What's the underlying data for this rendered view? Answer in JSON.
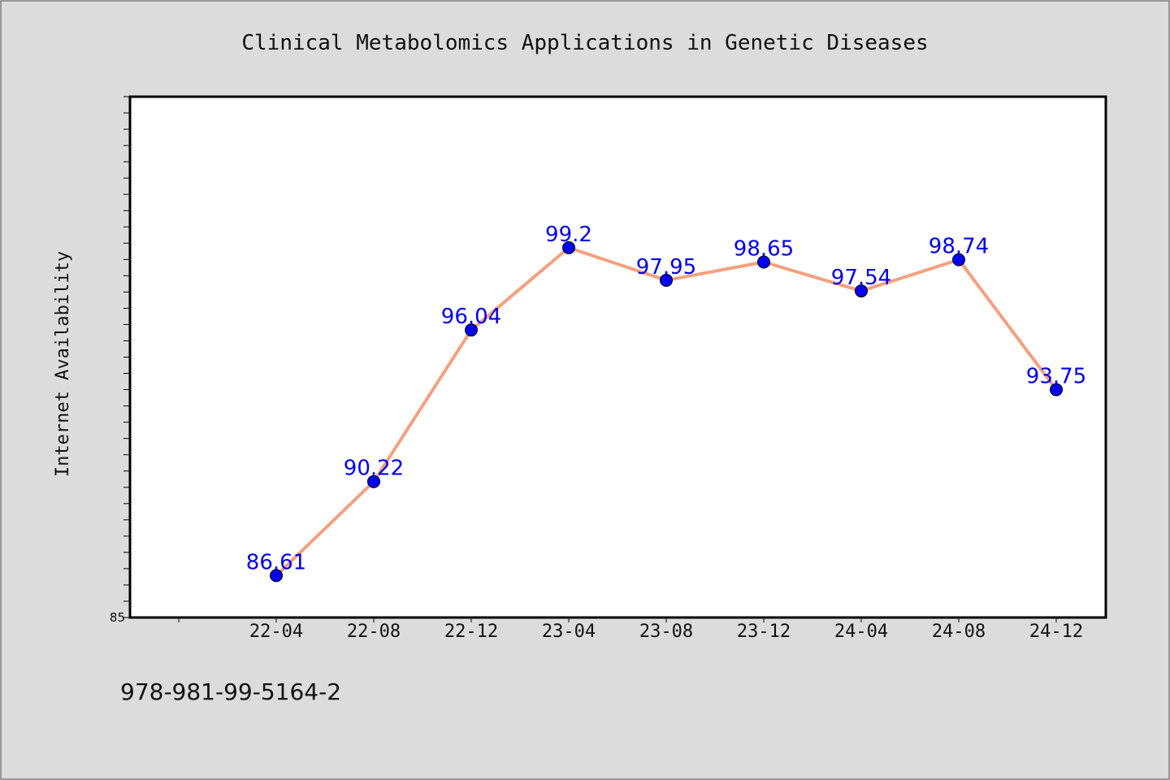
{
  "colors": {
    "background": "#dcdcdc",
    "plot_background": "#ffffff",
    "line": "#f4a07f",
    "marker": "#0000ee",
    "data_label": "#0000ee"
  },
  "chart_data": {
    "type": "line",
    "title": "Clinical Metabolomics Applications in Genetic Diseases",
    "ylabel": "Internet Availability",
    "xlabel": "",
    "categories": [
      "22-04",
      "22-08",
      "22-12",
      "23-04",
      "23-08",
      "23-12",
      "24-04",
      "24-08",
      "24-12"
    ],
    "values": [
      86.61,
      90.22,
      96.04,
      99.2,
      97.95,
      98.65,
      97.54,
      98.74,
      93.75
    ],
    "data_labels": [
      "86.61",
      "90.22",
      "96.04",
      "99.2",
      "97.95",
      "98.65",
      "97.54",
      "98.74",
      "93.75"
    ],
    "ylim": [
      85,
      105
    ],
    "y_tick_labels": [
      "85"
    ],
    "grid": false,
    "legend": "none"
  },
  "footer": {
    "isbn": "978-981-99-5164-2"
  }
}
